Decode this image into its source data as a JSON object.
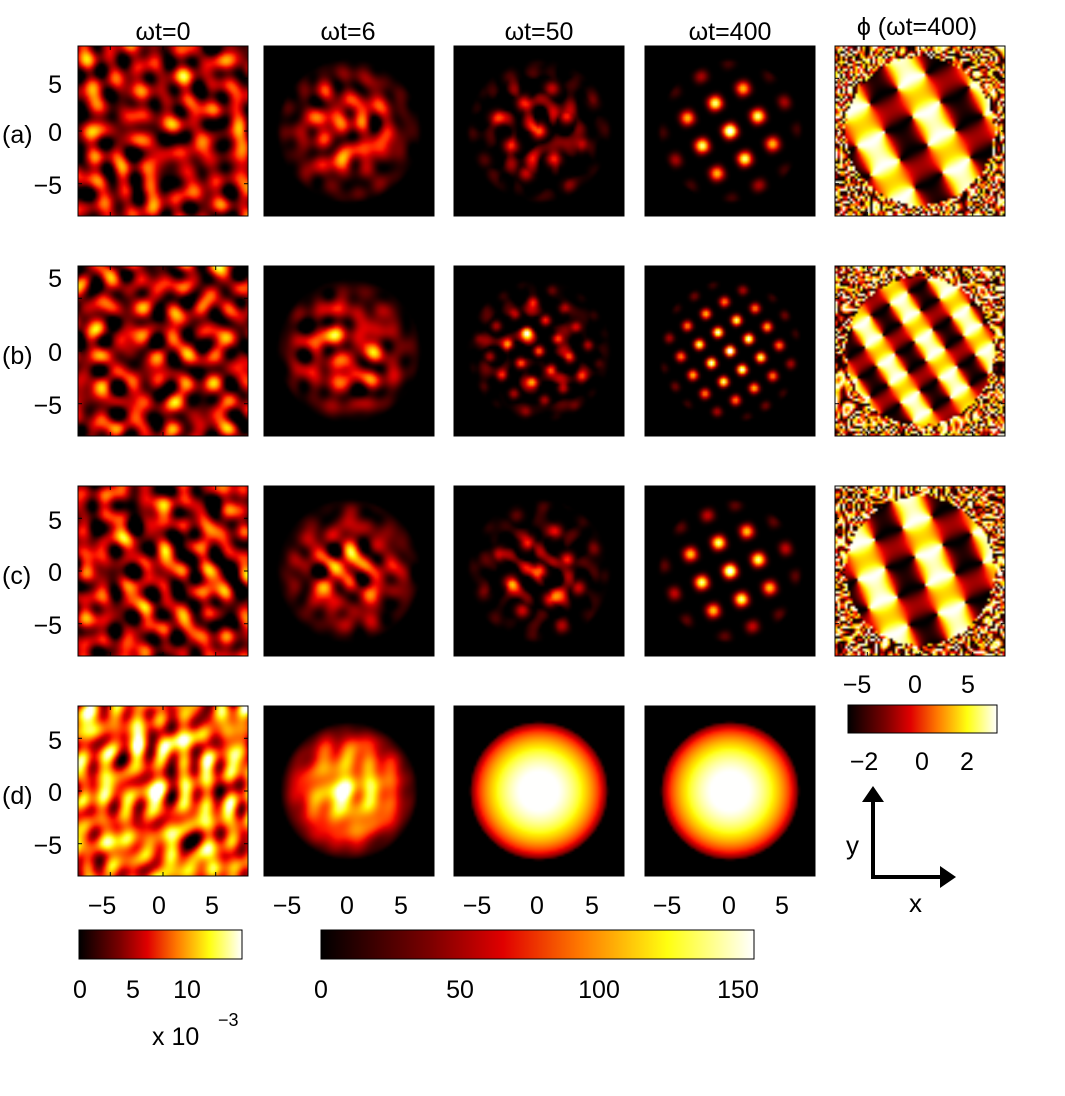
{
  "chart_data": {
    "type": "heatmap",
    "column_titles": [
      "ωt=0",
      "ωt=6",
      "ωt=50",
      "ωt=400",
      "ϕ (ωt=400)"
    ],
    "row_labels": [
      "(a)",
      "(b)",
      "(c)",
      "(d)"
    ],
    "x_ticks": [
      "−5",
      "0",
      "5"
    ],
    "y_ticks": [
      "5",
      "0",
      "−5"
    ],
    "xlim": [
      -8,
      8
    ],
    "ylim": [
      -8,
      8
    ],
    "grid": false,
    "colormap": "hot",
    "axis_labels": {
      "x": "x",
      "y": "y"
    },
    "colorbars": [
      {
        "id": "initial-density",
        "ticks": [
          "0",
          "5",
          "10"
        ],
        "range": [
          0,
          14
        ],
        "multiplier_label": "x 10",
        "multiplier_exponent": "−3"
      },
      {
        "id": "density",
        "ticks": [
          "0",
          "50",
          "100",
          "150"
        ],
        "range": [
          0,
          155
        ]
      },
      {
        "id": "phase",
        "ticks": [
          "−2",
          "0",
          "2"
        ],
        "range": [
          -3.14,
          3.14
        ]
      }
    ],
    "panels": [
      {
        "row": "a",
        "lattice_spacing": 3.0,
        "lattice_angle_deg": 28,
        "cloud_radius": 6.8
      },
      {
        "row": "b",
        "lattice_spacing": 2.1,
        "lattice_angle_deg": 33,
        "cloud_radius": 6.8
      },
      {
        "row": "c",
        "lattice_spacing": 2.9,
        "lattice_angle_deg": 22,
        "cloud_radius": 6.8
      },
      {
        "row": "d",
        "lattice_spacing": 0,
        "lattice_angle_deg": 0,
        "cloud_radius": 6.5
      }
    ]
  }
}
